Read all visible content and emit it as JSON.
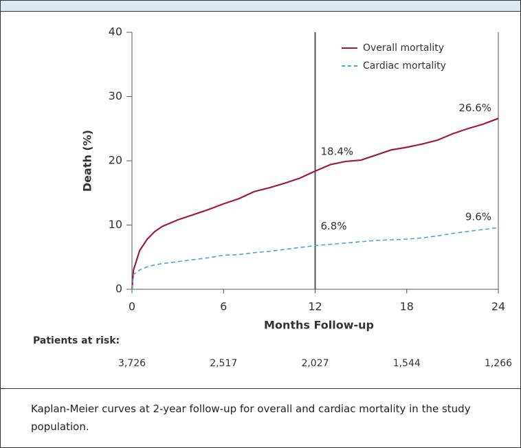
{
  "chart_data": {
    "type": "line",
    "x_label": "Months Follow-up",
    "y_label": "Death (%)",
    "x": [
      0,
      0.1,
      0.5,
      1,
      1.5,
      2,
      3,
      4,
      5,
      6,
      7,
      8,
      9,
      10,
      11,
      12,
      13,
      14,
      15,
      16,
      17,
      18,
      19,
      20,
      21,
      22,
      23,
      24
    ],
    "series": [
      {
        "name": "Overall mortality",
        "color": "#a01a40",
        "dash": false,
        "values": [
          0,
          3,
          6,
          7.8,
          9,
          9.8,
          10.8,
          11.6,
          12.4,
          13.3,
          14.1,
          15.2,
          15.8,
          16.5,
          17.3,
          18.4,
          19.4,
          19.9,
          20.1,
          20.9,
          21.7,
          22.1,
          22.6,
          23.2,
          24.2,
          25.0,
          25.7,
          26.6
        ]
      },
      {
        "name": "Cardiac mortality",
        "color": "#4aa3d9",
        "dash": true,
        "values": [
          0,
          2.3,
          3.0,
          3.5,
          3.8,
          4.0,
          4.3,
          4.6,
          4.9,
          5.3,
          5.4,
          5.7,
          5.9,
          6.2,
          6.5,
          6.8,
          7.0,
          7.2,
          7.4,
          7.6,
          7.7,
          7.8,
          8.0,
          8.3,
          8.7,
          9.0,
          9.3,
          9.6
        ]
      }
    ],
    "annotations": [
      {
        "text": "26.6%",
        "x": 24,
        "y": 26.6
      },
      {
        "text": "18.4%",
        "x": 12,
        "y": 18.4
      },
      {
        "text": "6.8%",
        "x": 12,
        "y": 6.8
      },
      {
        "text": "9.6%",
        "x": 24,
        "y": 9.6
      }
    ],
    "reference_line_x": 12,
    "xlim": [
      0,
      24
    ],
    "xticks": [
      0,
      6,
      12,
      18,
      24
    ],
    "ylim": [
      0,
      40
    ],
    "yticks": [
      0,
      10,
      20,
      30,
      40
    ],
    "legend": "top-right",
    "risk_table": {
      "label": "Patients at risk:",
      "months": [
        0,
        6,
        12,
        18,
        24
      ],
      "values": [
        3726,
        2517,
        2027,
        1544,
        1266
      ],
      "value_labels": [
        "3,726",
        "2,517",
        "2,027",
        "1,544",
        "1,266"
      ]
    }
  },
  "caption": "Kaplan-Meier curves at 2-year follow-up for overall and cardiac mortality in the study population."
}
